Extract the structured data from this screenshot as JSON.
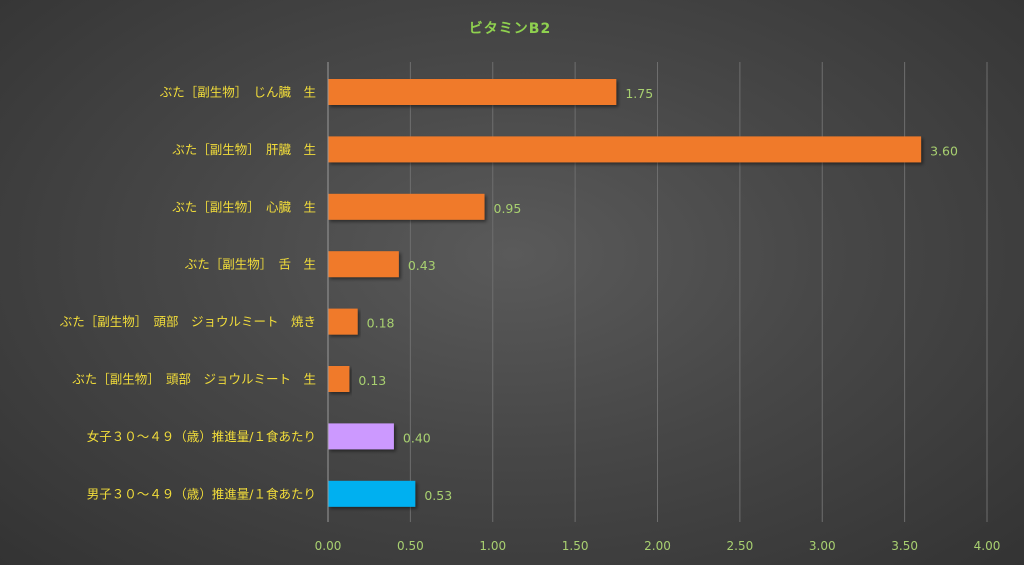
{
  "chart_data": {
    "type": "bar",
    "orientation": "horizontal",
    "title": "ビタミンB2",
    "xlabel": "",
    "ylabel": "",
    "xlim": [
      0,
      4.0
    ],
    "xticks": [
      "0.00",
      "0.50",
      "1.00",
      "1.50",
      "2.00",
      "2.50",
      "3.00",
      "3.50",
      "4.00"
    ],
    "grid": true,
    "legend": "none",
    "categories": [
      "ぶた［副生物］　じん臓　生",
      "ぶた［副生物］　肝臓　生",
      "ぶた［副生物］　心臓　生",
      "ぶた［副生物］　舌　生",
      "ぶた［副生物］　頭部　ジョウルミート　焼き",
      "ぶた［副生物］　頭部　ジョウルミート　生",
      "女子３０～４９（歳）推進量/１食あたり",
      "男子３０～４９（歳）推進量/１食あたり"
    ],
    "values": [
      1.75,
      3.6,
      0.95,
      0.43,
      0.18,
      0.13,
      0.4,
      0.53
    ],
    "value_labels": [
      "1.75",
      "3.60",
      "0.95",
      "0.43",
      "0.18",
      "0.13",
      "0.40",
      "0.53"
    ],
    "bar_colors": [
      "#f07a2a",
      "#f07a2a",
      "#f07a2a",
      "#f07a2a",
      "#f07a2a",
      "#f07a2a",
      "#cc99ff",
      "#00b0f0"
    ]
  },
  "colors": {
    "background": "#474747",
    "title": "#8fd14f",
    "category_label": "#f2dd3a",
    "tick_label": "#a8d070",
    "gridline": "#6e6e6e"
  }
}
